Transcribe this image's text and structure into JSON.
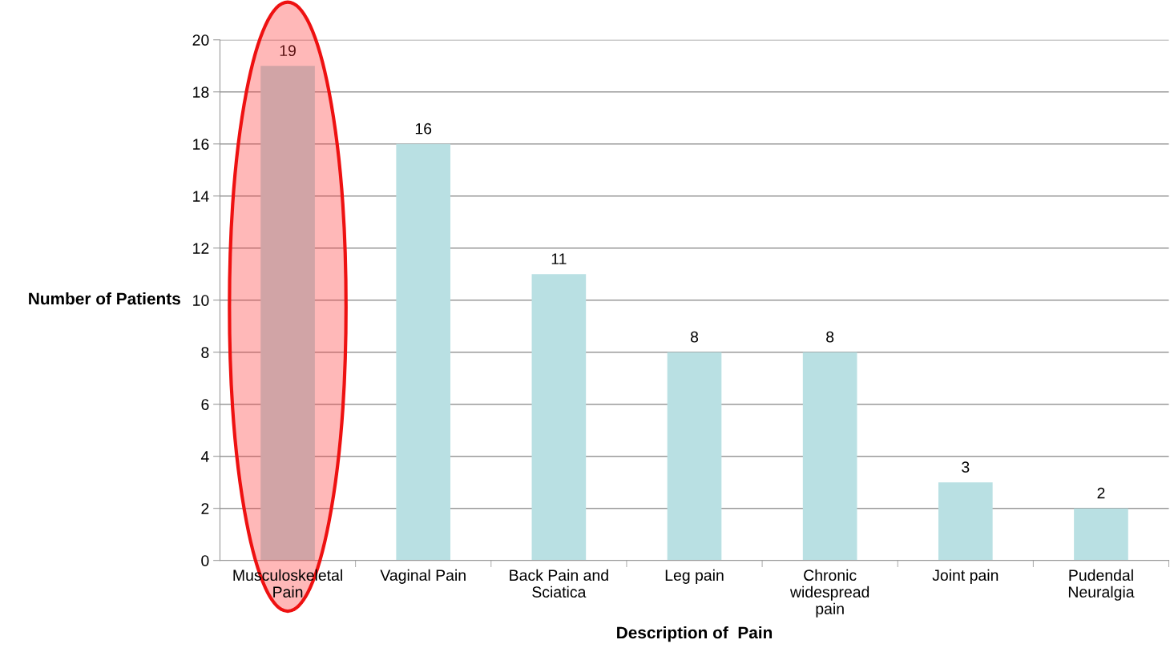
{
  "chart_data": {
    "type": "bar",
    "categories": [
      "Musculoskeletal\nPain",
      "Vaginal Pain",
      "Back Pain and\nSciatica",
      "Leg pain",
      "Chronic\nwidespread\npain",
      "Joint pain",
      "Pudendal\nNeuralgia"
    ],
    "values": [
      19,
      16,
      11,
      8,
      8,
      3,
      2
    ],
    "color": "#b9e0e3",
    "xlabel": "Description of  Pain",
    "ylabel": "Number of Patients",
    "ylim": [
      0,
      20
    ],
    "yticks": [
      0,
      2,
      4,
      6,
      8,
      10,
      12,
      14,
      16,
      18,
      20
    ],
    "grid": "y",
    "data_labels": true
  }
}
